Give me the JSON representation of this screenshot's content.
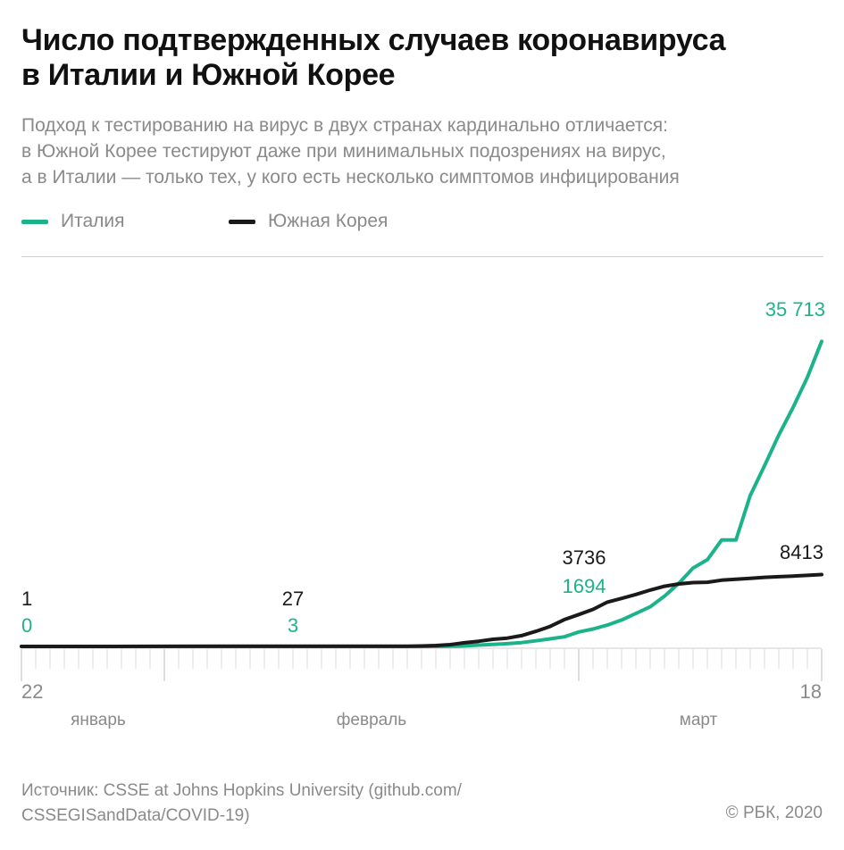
{
  "header": {
    "title_line1": "Число подтвержденных случаев коронавируса",
    "title_line2": "в Италии и Южной Корее",
    "subtitle_line1": "Подход к тестированию на вирус в двух странах кардинально отличается:",
    "subtitle_line2": "в Южной Корее тестируют даже при минимальных подозрениях на вирус,",
    "subtitle_line3": "а в Италии — только тех, у кого есть несколько симптомов инфицирования"
  },
  "legend": {
    "items": [
      {
        "label": "Италия",
        "color": "#1db38a"
      },
      {
        "label": "Южная Корея",
        "color": "#1a1a1a"
      }
    ],
    "placement": "top-left"
  },
  "chart_data": {
    "type": "line",
    "x_start": "2020-01-22",
    "x_end": "2020-03-18",
    "x_tick_labels": [
      "22",
      "18"
    ],
    "month_labels": [
      "январь",
      "февраль",
      "март"
    ],
    "grid": false,
    "series": [
      {
        "name": "Италия",
        "color": "#1db38a",
        "points": [
          [
            "2020-01-22",
            0
          ],
          [
            "2020-01-30",
            0
          ],
          [
            "2020-01-31",
            2
          ],
          [
            "2020-02-10",
            3
          ],
          [
            "2020-02-20",
            3
          ],
          [
            "2020-02-21",
            20
          ],
          [
            "2020-02-22",
            62
          ],
          [
            "2020-02-23",
            155
          ],
          [
            "2020-02-24",
            229
          ],
          [
            "2020-02-25",
            322
          ],
          [
            "2020-02-26",
            453
          ],
          [
            "2020-02-27",
            655
          ],
          [
            "2020-02-28",
            888
          ],
          [
            "2020-02-29",
            1128
          ],
          [
            "2020-03-01",
            1694
          ],
          [
            "2020-03-02",
            2036
          ],
          [
            "2020-03-03",
            2502
          ],
          [
            "2020-03-04",
            3089
          ],
          [
            "2020-03-05",
            3858
          ],
          [
            "2020-03-06",
            4636
          ],
          [
            "2020-03-07",
            5883
          ],
          [
            "2020-03-08",
            7375
          ],
          [
            "2020-03-09",
            9172
          ],
          [
            "2020-03-10",
            10149
          ],
          [
            "2020-03-11",
            12462
          ],
          [
            "2020-03-12",
            12462
          ],
          [
            "2020-03-13",
            17660
          ],
          [
            "2020-03-14",
            21157
          ],
          [
            "2020-03-15",
            24747
          ],
          [
            "2020-03-16",
            27980
          ],
          [
            "2020-03-17",
            31506
          ],
          [
            "2020-03-18",
            35713
          ]
        ]
      },
      {
        "name": "Южная Корея",
        "color": "#1a1a1a",
        "points": [
          [
            "2020-01-22",
            1
          ],
          [
            "2020-01-25",
            2
          ],
          [
            "2020-01-27",
            4
          ],
          [
            "2020-01-31",
            11
          ],
          [
            "2020-02-05",
            19
          ],
          [
            "2020-02-10",
            27
          ],
          [
            "2020-02-15",
            28
          ],
          [
            "2020-02-18",
            31
          ],
          [
            "2020-02-19",
            51
          ],
          [
            "2020-02-20",
            104
          ],
          [
            "2020-02-21",
            204
          ],
          [
            "2020-02-22",
            433
          ],
          [
            "2020-02-23",
            602
          ],
          [
            "2020-02-24",
            833
          ],
          [
            "2020-02-25",
            977
          ],
          [
            "2020-02-26",
            1261
          ],
          [
            "2020-02-27",
            1766
          ],
          [
            "2020-02-28",
            2337
          ],
          [
            "2020-02-29",
            3150
          ],
          [
            "2020-03-01",
            3736
          ],
          [
            "2020-03-02",
            4335
          ],
          [
            "2020-03-03",
            5186
          ],
          [
            "2020-03-04",
            5621
          ],
          [
            "2020-03-05",
            6088
          ],
          [
            "2020-03-06",
            6593
          ],
          [
            "2020-03-07",
            7041
          ],
          [
            "2020-03-08",
            7314
          ],
          [
            "2020-03-09",
            7478
          ],
          [
            "2020-03-10",
            7513
          ],
          [
            "2020-03-11",
            7755
          ],
          [
            "2020-03-12",
            7869
          ],
          [
            "2020-03-13",
            7979
          ],
          [
            "2020-03-14",
            8086
          ],
          [
            "2020-03-15",
            8162
          ],
          [
            "2020-03-16",
            8236
          ],
          [
            "2020-03-17",
            8320
          ],
          [
            "2020-03-18",
            8413
          ]
        ]
      }
    ],
    "annotations": [
      {
        "date": "2020-01-22",
        "korea": "1",
        "italy": "0"
      },
      {
        "date": "2020-02-10",
        "korea": "27",
        "italy": "3"
      },
      {
        "date": "2020-03-01",
        "korea": "3736",
        "italy": "1694"
      },
      {
        "date": "2020-03-18",
        "korea": "8413",
        "italy": "35 713"
      }
    ],
    "ylim": [
      0,
      37000
    ]
  },
  "footer": {
    "source_line1": "Источник: CSSE at Johns Hopkins University (github.com/",
    "source_line2": "CSSEGISandData/COVID-19)",
    "copyright": "© РБК, 2020"
  }
}
